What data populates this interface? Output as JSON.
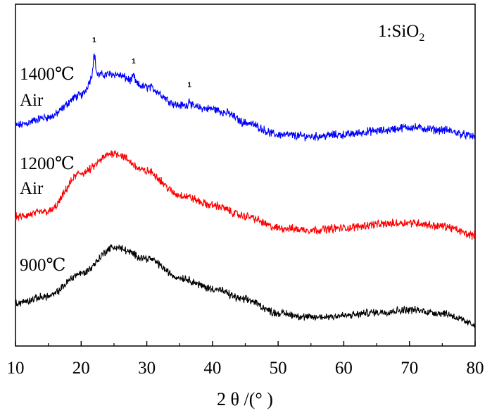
{
  "chart_data": {
    "type": "line",
    "title": "",
    "xlabel": "2 θ /(°  )",
    "ylabel": "",
    "xlim": [
      10,
      80
    ],
    "x_ticks": [
      "10",
      "20",
      "30",
      "40",
      "50",
      "60",
      "70",
      "80"
    ],
    "y_ticks_visible": false,
    "grid": false,
    "legend": "none",
    "annotations": {
      "phase_key": "1:SiO₂",
      "peak_marker": "1"
    },
    "series": [
      {
        "label_lines": [
          "1400℃",
          "Air"
        ],
        "color": "#0000ff",
        "x": [
          10,
          15,
          20,
          22,
          25,
          30,
          35,
          40,
          42,
          45,
          50,
          55,
          60,
          65,
          70,
          75,
          80
        ],
        "y": [
          0.0,
          0.09,
          0.33,
          0.55,
          0.56,
          0.42,
          0.22,
          0.18,
          0.14,
          0.03,
          -0.1,
          -0.12,
          -0.1,
          -0.06,
          -0.02,
          -0.05,
          -0.12
        ],
        "peaks": [
          22.0,
          28.0,
          36.5
        ]
      },
      {
        "label_lines": [
          "1200℃",
          "Air"
        ],
        "color": "#ff0000",
        "x": [
          10,
          15,
          20,
          25,
          30,
          35,
          40,
          45,
          50,
          55,
          60,
          65,
          70,
          75,
          80
        ],
        "y": [
          0.0,
          0.06,
          0.48,
          0.7,
          0.5,
          0.24,
          0.13,
          0.01,
          -0.12,
          -0.14,
          -0.12,
          -0.08,
          -0.06,
          -0.1,
          -0.2
        ],
        "peaks": []
      },
      {
        "label_lines": [
          "900℃"
        ],
        "color": "#000000",
        "x": [
          10,
          15,
          20,
          25,
          30,
          35,
          40,
          45,
          50,
          55,
          60,
          65,
          70,
          75,
          80
        ],
        "y": [
          0.0,
          0.08,
          0.35,
          0.66,
          0.53,
          0.3,
          0.17,
          0.04,
          -0.12,
          -0.17,
          -0.15,
          -0.11,
          -0.08,
          -0.12,
          -0.25
        ],
        "peaks": []
      }
    ]
  }
}
